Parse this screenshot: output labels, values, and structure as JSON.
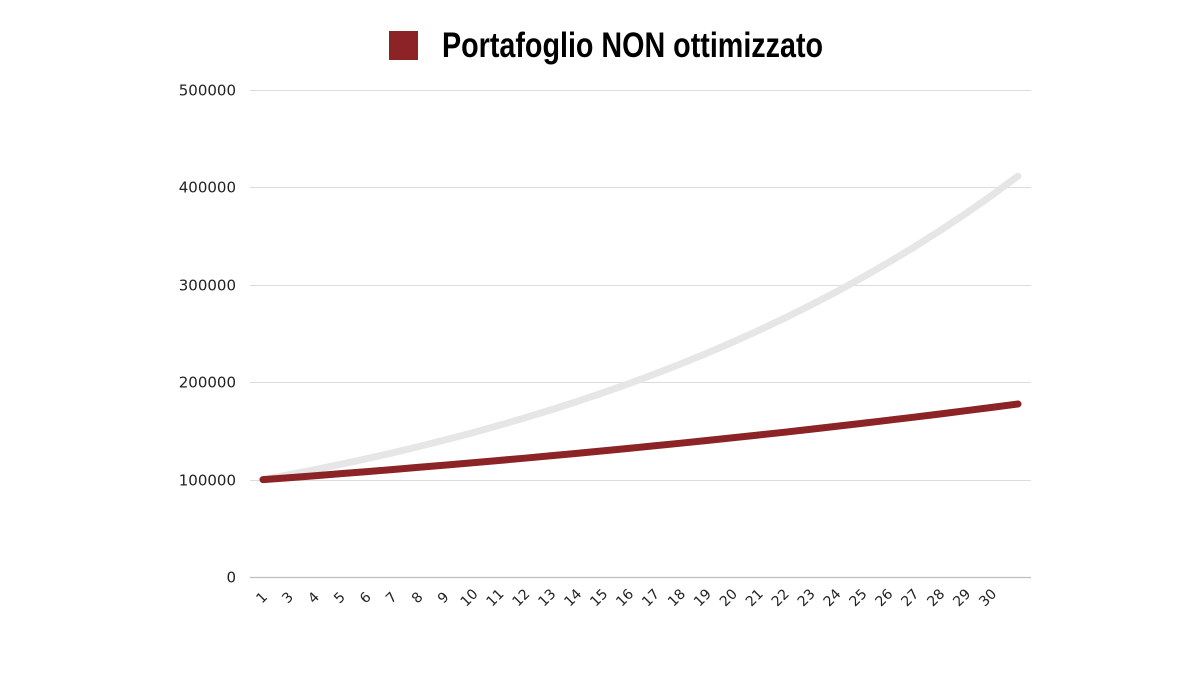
{
  "chart_data": {
    "type": "line",
    "legend": {
      "position": "top",
      "entries": [
        {
          "label": "Portafoglio NON ottimizzato",
          "color": "#8b2327"
        }
      ]
    },
    "x_tick_labels": [
      "1",
      "3",
      "4",
      "5",
      "6",
      "7",
      "8",
      "9",
      "10",
      "11",
      "12",
      "13",
      "14",
      "15",
      "16",
      "17",
      "18",
      "19",
      "20",
      "21",
      "22",
      "23",
      "24",
      "25",
      "26",
      "27",
      "28",
      "29",
      "30"
    ],
    "x": [
      1,
      2,
      3,
      4,
      5,
      6,
      7,
      8,
      9,
      10,
      11,
      12,
      13,
      14,
      15,
      16,
      17,
      18,
      19,
      20,
      21,
      22,
      23,
      24,
      25,
      26,
      27,
      28,
      29,
      30
    ],
    "ylim": [
      0,
      500000
    ],
    "yticks": [
      0,
      100000,
      200000,
      300000,
      400000,
      500000
    ],
    "grid": true,
    "series": [
      {
        "name": "Portafoglio NON ottimizzato",
        "color": "#8b2327",
        "values": [
          100000,
          102000,
          104040,
          106121,
          108243,
          110408,
          112616,
          114869,
          117166,
          119509,
          121899,
          124337,
          126824,
          129361,
          131948,
          134587,
          137279,
          140024,
          142825,
          145681,
          148595,
          151567,
          154598,
          157690,
          160844,
          164061,
          167342,
          170689,
          174102,
          177584
        ]
      },
      {
        "color": "#e6e6e6",
        "values": [
          100000,
          105000,
          110250,
          115763,
          121551,
          127628,
          134010,
          140710,
          147746,
          155133,
          162889,
          171034,
          179586,
          188565,
          197993,
          207893,
          218287,
          229202,
          240662,
          252695,
          265330,
          278596,
          292526,
          307152,
          322510,
          338635,
          355567,
          373346,
          392013,
          411614
        ]
      }
    ]
  }
}
